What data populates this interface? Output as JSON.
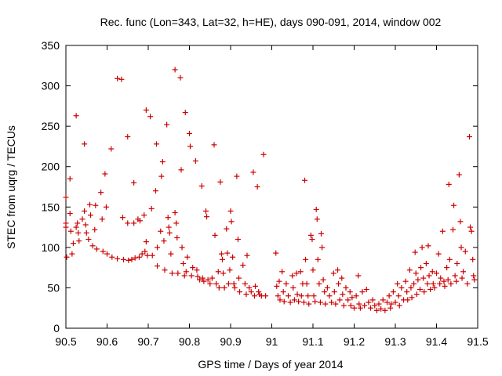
{
  "chart_data": {
    "type": "scatter",
    "title": "Rec. func (Lon=343, Lat=32, h=HE), days 090-091, 2014, window 002",
    "xlabel": "GPS time / Days of year 2014",
    "ylabel": "STEC from uqrg / TECUs",
    "xlim": [
      90.5,
      91.5
    ],
    "ylim": [
      0,
      350
    ],
    "xticks": [
      "90.5",
      "90.6",
      "90.7",
      "90.8",
      "90.9",
      "91",
      "91.1",
      "91.2",
      "91.3",
      "91.4",
      "91.5"
    ],
    "xtick_values": [
      90.5,
      90.6,
      90.7,
      90.8,
      90.9,
      91.0,
      91.1,
      91.2,
      91.3,
      91.4,
      91.5
    ],
    "yticks": [
      "0",
      "50",
      "100",
      "150",
      "200",
      "250",
      "300",
      "350"
    ],
    "ytick_values": [
      0,
      50,
      100,
      150,
      200,
      250,
      300,
      350
    ],
    "grid": false,
    "marker": "+",
    "color": "#cc0000",
    "series": [
      {
        "name": "STEC",
        "points": [
          [
            90.5,
            162
          ],
          [
            90.5,
            130
          ],
          [
            90.5,
            125
          ],
          [
            90.502,
            88
          ],
          [
            90.51,
            185
          ],
          [
            90.51,
            142
          ],
          [
            90.512,
            120
          ],
          [
            90.515,
            92
          ],
          [
            90.518,
            105
          ],
          [
            90.525,
            263
          ],
          [
            90.525,
            125
          ],
          [
            90.528,
            130
          ],
          [
            90.53,
            118
          ],
          [
            90.532,
            108
          ],
          [
            90.54,
            135
          ],
          [
            90.545,
            228
          ],
          [
            90.545,
            145
          ],
          [
            90.548,
            128
          ],
          [
            90.55,
            118
          ],
          [
            90.555,
            110
          ],
          [
            90.558,
            153
          ],
          [
            90.56,
            140
          ],
          [
            90.565,
            102
          ],
          [
            90.57,
            122
          ],
          [
            90.572,
            152
          ],
          [
            90.575,
            98
          ],
          [
            90.585,
            168
          ],
          [
            90.588,
            135
          ],
          [
            90.59,
            95
          ],
          [
            90.595,
            191
          ],
          [
            90.598,
            150
          ],
          [
            90.6,
            92
          ],
          [
            90.61,
            222
          ],
          [
            90.612,
            88
          ],
          [
            90.625,
            309
          ],
          [
            90.625,
            86
          ],
          [
            90.635,
            308
          ],
          [
            90.638,
            137
          ],
          [
            90.64,
            85
          ],
          [
            90.65,
            237
          ],
          [
            90.65,
            130
          ],
          [
            90.652,
            84
          ],
          [
            90.66,
            85
          ],
          [
            90.665,
            180
          ],
          [
            90.665,
            130
          ],
          [
            90.668,
            87
          ],
          [
            90.675,
            135
          ],
          [
            90.678,
            88
          ],
          [
            90.68,
            133
          ],
          [
            90.685,
            92
          ],
          [
            90.69,
            140
          ],
          [
            90.692,
            95
          ],
          [
            90.695,
            270
          ],
          [
            90.695,
            107
          ],
          [
            90.698,
            90
          ],
          [
            90.705,
            262
          ],
          [
            90.708,
            148
          ],
          [
            90.71,
            90
          ],
          [
            90.718,
            170
          ],
          [
            90.72,
            228
          ],
          [
            90.722,
            100
          ],
          [
            90.722,
            77
          ],
          [
            90.73,
            120
          ],
          [
            90.732,
            188
          ],
          [
            90.735,
            206
          ],
          [
            90.738,
            108
          ],
          [
            90.74,
            72
          ],
          [
            90.745,
            252
          ],
          [
            90.748,
            137
          ],
          [
            90.75,
            125
          ],
          [
            90.752,
            118
          ],
          [
            90.755,
            92
          ],
          [
            90.758,
            68
          ],
          [
            90.765,
            320
          ],
          [
            90.765,
            143
          ],
          [
            90.768,
            130
          ],
          [
            90.77,
            112
          ],
          [
            90.772,
            68
          ],
          [
            90.778,
            310
          ],
          [
            90.78,
            196
          ],
          [
            90.782,
            100
          ],
          [
            90.785,
            80
          ],
          [
            90.788,
            65
          ],
          [
            90.79,
            267
          ],
          [
            90.792,
            70
          ],
          [
            90.795,
            88
          ],
          [
            90.8,
            241
          ],
          [
            90.802,
            225
          ],
          [
            90.805,
            65
          ],
          [
            90.808,
            75
          ],
          [
            90.815,
            207
          ],
          [
            90.818,
            72
          ],
          [
            90.82,
            64
          ],
          [
            90.825,
            60
          ],
          [
            90.83,
            176
          ],
          [
            90.832,
            62
          ],
          [
            90.835,
            58
          ],
          [
            90.84,
            145
          ],
          [
            90.842,
            138
          ],
          [
            90.845,
            60
          ],
          [
            90.85,
            55
          ],
          [
            90.855,
            62
          ],
          [
            90.86,
            227
          ],
          [
            90.862,
            115
          ],
          [
            90.865,
            55
          ],
          [
            90.87,
            70
          ],
          [
            90.872,
            50
          ],
          [
            90.875,
            181
          ],
          [
            90.878,
            92
          ],
          [
            90.88,
            85
          ],
          [
            90.882,
            68
          ],
          [
            90.885,
            50
          ],
          [
            90.89,
            123
          ],
          [
            90.892,
            93
          ],
          [
            90.895,
            55
          ],
          [
            90.898,
            72
          ],
          [
            90.9,
            145
          ],
          [
            90.902,
            132
          ],
          [
            90.905,
            88
          ],
          [
            90.908,
            55
          ],
          [
            90.91,
            50
          ],
          [
            90.915,
            188
          ],
          [
            90.918,
            110
          ],
          [
            90.92,
            62
          ],
          [
            90.922,
            45
          ],
          [
            90.93,
            78
          ],
          [
            90.935,
            55
          ],
          [
            90.938,
            42
          ],
          [
            90.94,
            90
          ],
          [
            90.945,
            50
          ],
          [
            90.95,
            45
          ],
          [
            90.955,
            193
          ],
          [
            90.958,
            40
          ],
          [
            90.96,
            52
          ],
          [
            90.965,
            175
          ],
          [
            90.968,
            45
          ],
          [
            90.97,
            42
          ],
          [
            90.975,
            40
          ],
          [
            90.98,
            215
          ],
          [
            90.985,
            40
          ],
          [
            91.01,
            93
          ],
          [
            91.012,
            52
          ],
          [
            91.015,
            40
          ],
          [
            91.018,
            58
          ],
          [
            91.02,
            35
          ],
          [
            91.025,
            70
          ],
          [
            91.028,
            45
          ],
          [
            91.03,
            33
          ],
          [
            91.035,
            55
          ],
          [
            91.04,
            40
          ],
          [
            91.045,
            32
          ],
          [
            91.05,
            65
          ],
          [
            91.052,
            50
          ],
          [
            91.055,
            35
          ],
          [
            91.06,
            68
          ],
          [
            91.062,
            42
          ],
          [
            91.065,
            33
          ],
          [
            91.07,
            70
          ],
          [
            91.072,
            40
          ],
          [
            91.075,
            55
          ],
          [
            91.078,
            32
          ],
          [
            91.08,
            183
          ],
          [
            91.082,
            85
          ],
          [
            91.085,
            55
          ],
          [
            91.088,
            40
          ],
          [
            91.09,
            30
          ],
          [
            91.095,
            115
          ],
          [
            91.098,
            110
          ],
          [
            91.1,
            72
          ],
          [
            91.102,
            40
          ],
          [
            91.105,
            33
          ],
          [
            91.108,
            147
          ],
          [
            91.11,
            135
          ],
          [
            91.112,
            85
          ],
          [
            91.115,
            55
          ],
          [
            91.118,
            32
          ],
          [
            91.12,
            117
          ],
          [
            91.122,
            100
          ],
          [
            91.125,
            60
          ],
          [
            91.128,
            45
          ],
          [
            91.13,
            30
          ],
          [
            91.135,
            50
          ],
          [
            91.14,
            40
          ],
          [
            91.145,
            32
          ],
          [
            91.15,
            68
          ],
          [
            91.152,
            45
          ],
          [
            91.155,
            30
          ],
          [
            91.16,
            72
          ],
          [
            91.162,
            55
          ],
          [
            91.165,
            35
          ],
          [
            91.17,
            62
          ],
          [
            91.172,
            42
          ],
          [
            91.175,
            28
          ],
          [
            91.18,
            50
          ],
          [
            91.185,
            35
          ],
          [
            91.19,
            45
          ],
          [
            91.192,
            28
          ],
          [
            91.195,
            38
          ],
          [
            91.2,
            25
          ],
          [
            91.205,
            40
          ],
          [
            91.21,
            65
          ],
          [
            91.212,
            30
          ],
          [
            91.215,
            25
          ],
          [
            91.22,
            45
          ],
          [
            91.225,
            28
          ],
          [
            91.23,
            48
          ],
          [
            91.235,
            32
          ],
          [
            91.24,
            25
          ],
          [
            91.245,
            35
          ],
          [
            91.25,
            28
          ],
          [
            91.255,
            22
          ],
          [
            91.26,
            30
          ],
          [
            91.265,
            24
          ],
          [
            91.27,
            35
          ],
          [
            91.275,
            22
          ],
          [
            91.28,
            32
          ],
          [
            91.285,
            40
          ],
          [
            91.288,
            25
          ],
          [
            91.29,
            30
          ],
          [
            91.295,
            45
          ],
          [
            91.3,
            32
          ],
          [
            91.305,
            55
          ],
          [
            91.308,
            40
          ],
          [
            91.31,
            28
          ],
          [
            91.315,
            50
          ],
          [
            91.32,
            35
          ],
          [
            91.325,
            58
          ],
          [
            91.328,
            45
          ],
          [
            91.33,
            35
          ],
          [
            91.335,
            72
          ],
          [
            91.338,
            50
          ],
          [
            91.34,
            38
          ],
          [
            91.345,
            55
          ],
          [
            91.348,
            94
          ],
          [
            91.35,
            68
          ],
          [
            91.352,
            42
          ],
          [
            91.355,
            60
          ],
          [
            91.36,
            48
          ],
          [
            91.362,
            75
          ],
          [
            91.365,
            100
          ],
          [
            91.368,
            62
          ],
          [
            91.37,
            45
          ],
          [
            91.375,
            80
          ],
          [
            91.378,
            55
          ],
          [
            91.38,
            102
          ],
          [
            91.382,
            65
          ],
          [
            91.385,
            48
          ],
          [
            91.39,
            70
          ],
          [
            91.392,
            55
          ],
          [
            91.395,
            50
          ],
          [
            91.4,
            68
          ],
          [
            91.405,
            92
          ],
          [
            91.408,
            55
          ],
          [
            91.41,
            62
          ],
          [
            91.415,
            120
          ],
          [
            91.418,
            58
          ],
          [
            91.42,
            52
          ],
          [
            91.425,
            75
          ],
          [
            91.428,
            60
          ],
          [
            91.43,
            178
          ],
          [
            91.432,
            85
          ],
          [
            91.435,
            55
          ],
          [
            91.44,
            122
          ],
          [
            91.442,
            152
          ],
          [
            91.445,
            65
          ],
          [
            91.448,
            58
          ],
          [
            91.45,
            80
          ],
          [
            91.455,
            190
          ],
          [
            91.458,
            132
          ],
          [
            91.46,
            100
          ],
          [
            91.462,
            62
          ],
          [
            91.465,
            70
          ],
          [
            91.47,
            95
          ],
          [
            91.475,
            55
          ],
          [
            91.48,
            237
          ],
          [
            91.482,
            125
          ],
          [
            91.485,
            120
          ],
          [
            91.488,
            85
          ],
          [
            91.49,
            65
          ],
          [
            91.492,
            60
          ]
        ]
      }
    ]
  }
}
